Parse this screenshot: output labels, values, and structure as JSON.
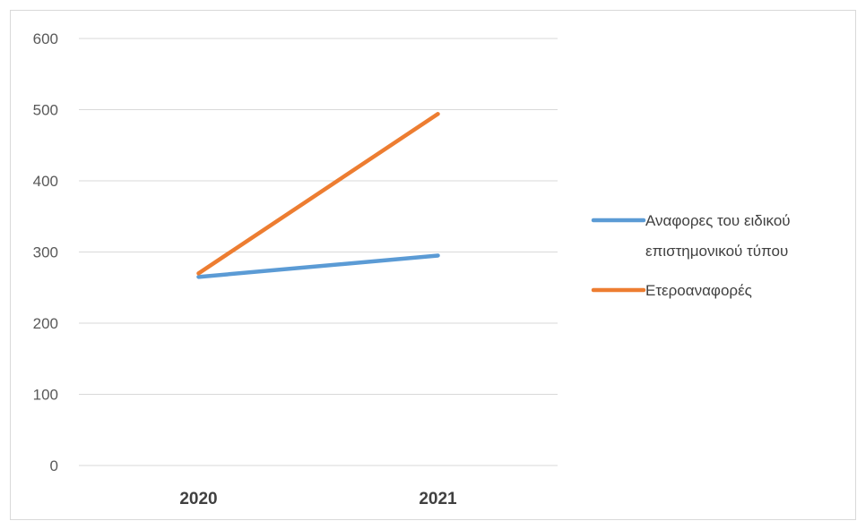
{
  "chart_data": {
    "type": "line",
    "categories": [
      "2020",
      "2021"
    ],
    "ylim": [
      0,
      600
    ],
    "yticks": [
      0,
      100,
      200,
      300,
      400,
      500,
      600
    ],
    "grid": true,
    "legend_position": "right",
    "series": [
      {
        "name": "Αναφορες  του ειδικού επιστημονικού τύπου",
        "name_lines": [
          "Αναφορες  του ειδικού",
          "επιστημονικού τύπου"
        ],
        "values": [
          265,
          295
        ],
        "color": "#5b9bd5"
      },
      {
        "name": "Ετεροαναφορές",
        "name_lines": [
          "Ετεροαναφορές"
        ],
        "values": [
          270,
          494
        ],
        "color": "#ed7d31"
      }
    ]
  }
}
